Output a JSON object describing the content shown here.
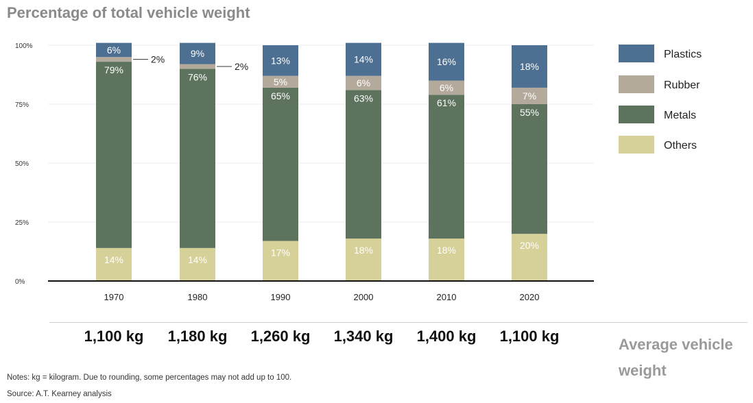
{
  "title": "Percentage of total vehicle weight",
  "chart_data": {
    "type": "bar",
    "stacked": true,
    "categories": [
      "1970",
      "1980",
      "1990",
      "2000",
      "2010",
      "2020"
    ],
    "ylim": [
      0,
      100
    ],
    "yticks": [
      "0%",
      "25%",
      "50%",
      "75%",
      "100%"
    ],
    "grid": true,
    "legend_position": "right",
    "series": [
      {
        "name": "Others",
        "color": "#d6d199",
        "values": [
          14,
          14,
          17,
          18,
          18,
          20
        ],
        "labels": [
          "14%",
          "14%",
          "17%",
          "18%",
          "18%",
          "20%"
        ]
      },
      {
        "name": "Metals",
        "color": "#5d735d",
        "values": [
          79,
          76,
          65,
          63,
          61,
          55
        ],
        "labels": [
          "79%",
          "76%",
          "65%",
          "63%",
          "61%",
          "55%"
        ]
      },
      {
        "name": "Rubber",
        "color": "#b4aa9c",
        "values": [
          2,
          2,
          5,
          6,
          6,
          7
        ],
        "labels": [
          "2%",
          "2%",
          "5%",
          "6%",
          "6%",
          "7%"
        ]
      },
      {
        "name": "Plastics",
        "color": "#4d6f91",
        "values": [
          6,
          9,
          13,
          14,
          16,
          18
        ],
        "labels": [
          "6%",
          "9%",
          "13%",
          "14%",
          "16%",
          "18%"
        ]
      }
    ],
    "legend_order": [
      "Plastics",
      "Rubber",
      "Metals",
      "Others"
    ]
  },
  "weights": [
    "1,100 kg",
    "1,180 kg",
    "1,260 kg",
    "1,340 kg",
    "1,400 kg",
    "1,100 kg"
  ],
  "avg_label": "Average vehicle weight",
  "notes": "Notes: kg = kilogram. Due to rounding, some percentages may not add up to 100.",
  "source": "Source: A.T. Kearney analysis"
}
